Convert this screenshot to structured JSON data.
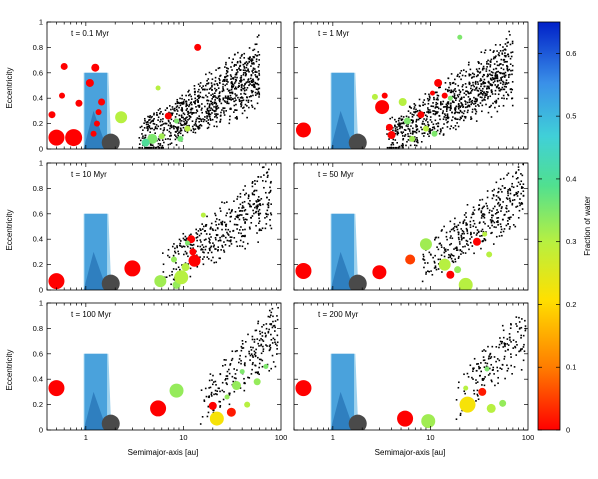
{
  "figure": {
    "xlabel": "Semimajor-axis [au]",
    "ylabel": "Eccentricity",
    "colorbar_label": "Fraction of water"
  },
  "colors": {
    "water_scale": [
      "#ff0000",
      "#ff7a00",
      "#ffe000",
      "#b8f040",
      "#50e090",
      "#40d0d8",
      "#3a90e8",
      "#0020c8"
    ],
    "habitable_zone_outer": "#9fd2ee",
    "habitable_zone_inner": "#4aa2dc",
    "habitable_zone_core": "#2f7fbf",
    "earth_analog": "#4a4a4a",
    "test_particle": "#000000"
  },
  "chart_data": {
    "type": "scatter",
    "x_scale": "log",
    "xlim": [
      0.4,
      100
    ],
    "ylim": [
      0,
      1
    ],
    "x_ticks": [
      1,
      10,
      100
    ],
    "x_tick_labels": [
      "1",
      "10",
      "100"
    ],
    "y_ticks": [
      0,
      0.2,
      0.4,
      0.6,
      0.8,
      1
    ],
    "y_tick_labels": [
      "0",
      "0.2",
      "0.4",
      "0.6",
      "0.8",
      "1"
    ],
    "colorbar": {
      "range": [
        0,
        0.65
      ],
      "ticks": [
        0,
        0.1,
        0.2,
        0.3,
        0.4,
        0.5,
        0.6
      ],
      "tick_labels": [
        "0",
        "0.1",
        "0.2",
        "0.3",
        "0.4",
        "0.5",
        "0.6"
      ]
    },
    "habitable_zone": {
      "outer": {
        "a_min": 0.95,
        "a_max": 1.7,
        "e_max": 0.6
      },
      "inner_peak": {
        "a_min": 0.95,
        "a_max": 1.5,
        "e_peak": 0.3,
        "a_peak": 1.2
      }
    },
    "earth_analog": {
      "a": 1.8,
      "e": 0.05,
      "size": 9
    },
    "panels": [
      {
        "title": "t = 0.1 Myr",
        "embryos": [
          {
            "a": 0.5,
            "e": 0.09,
            "w": 0.0,
            "size": 8
          },
          {
            "a": 0.75,
            "e": 0.09,
            "w": 0.0,
            "size": 8.5
          },
          {
            "a": 0.45,
            "e": 0.27,
            "w": 0.0,
            "size": 3.5
          },
          {
            "a": 0.57,
            "e": 0.42,
            "w": 0.0,
            "size": 3
          },
          {
            "a": 0.85,
            "e": 0.36,
            "w": 0.0,
            "size": 3.5
          },
          {
            "a": 1.1,
            "e": 0.52,
            "w": 0.0,
            "size": 4
          },
          {
            "a": 1.25,
            "e": 0.64,
            "w": 0.0,
            "size": 4
          },
          {
            "a": 1.35,
            "e": 0.29,
            "w": 0.0,
            "size": 3
          },
          {
            "a": 1.45,
            "e": 0.37,
            "w": 0.0,
            "size": 3.5
          },
          {
            "a": 1.3,
            "e": 0.2,
            "w": 0.0,
            "size": 3
          },
          {
            "a": 1.2,
            "e": 0.12,
            "w": 0.0,
            "size": 3
          },
          {
            "a": 0.6,
            "e": 0.65,
            "w": 0.0,
            "size": 3.5
          },
          {
            "a": 2.3,
            "e": 0.25,
            "w": 0.3,
            "size": 6
          },
          {
            "a": 4.8,
            "e": 0.08,
            "w": 0.35,
            "size": 5
          },
          {
            "a": 4.1,
            "e": 0.05,
            "w": 0.4,
            "size": 4
          },
          {
            "a": 6.0,
            "e": 0.1,
            "w": 0.32,
            "size": 3
          },
          {
            "a": 7.0,
            "e": 0.26,
            "w": 0.0,
            "size": 3.5
          },
          {
            "a": 9.3,
            "e": 0.08,
            "w": 0.36,
            "size": 3
          },
          {
            "a": 11.0,
            "e": 0.16,
            "w": 0.3,
            "size": 3
          },
          {
            "a": 5.5,
            "e": 0.48,
            "w": 0.3,
            "size": 2.5
          },
          {
            "a": 14.0,
            "e": 0.8,
            "w": 0.0,
            "size": 3.5
          },
          {
            "a": 8.5,
            "e": 0.22,
            "w": 0.35,
            "size": 2.5
          }
        ],
        "particles": {
          "count": 900,
          "seed": 11,
          "a_min": 3.5,
          "a_max": 60,
          "e_base": 0.05,
          "e_spread": 0.7
        }
      },
      {
        "title": "t = 1 Myr",
        "embryos": [
          {
            "a": 0.5,
            "e": 0.15,
            "w": 0.0,
            "size": 7.5
          },
          {
            "a": 3.2,
            "e": 0.33,
            "w": 0.0,
            "size": 7
          },
          {
            "a": 3.8,
            "e": 0.17,
            "w": 0.0,
            "size": 3.5
          },
          {
            "a": 3.4,
            "e": 0.42,
            "w": 0.0,
            "size": 3
          },
          {
            "a": 4.0,
            "e": 0.11,
            "w": 0.0,
            "size": 4
          },
          {
            "a": 5.2,
            "e": 0.37,
            "w": 0.3,
            "size": 4
          },
          {
            "a": 5.8,
            "e": 0.22,
            "w": 0.35,
            "size": 3.5
          },
          {
            "a": 6.5,
            "e": 0.08,
            "w": 0.32,
            "size": 3
          },
          {
            "a": 8.0,
            "e": 0.27,
            "w": 0.0,
            "size": 3.5
          },
          {
            "a": 9.0,
            "e": 0.16,
            "w": 0.3,
            "size": 3
          },
          {
            "a": 12.0,
            "e": 0.52,
            "w": 0.0,
            "size": 4
          },
          {
            "a": 14.0,
            "e": 0.42,
            "w": 0.0,
            "size": 3
          },
          {
            "a": 11.0,
            "e": 0.12,
            "w": 0.35,
            "size": 3
          },
          {
            "a": 2.7,
            "e": 0.41,
            "w": 0.3,
            "size": 3
          },
          {
            "a": 10.5,
            "e": 0.44,
            "w": 0.0,
            "size": 2.5
          },
          {
            "a": 16.0,
            "e": 0.4,
            "w": 0.35,
            "size": 2.5
          },
          {
            "a": 20.0,
            "e": 0.88,
            "w": 0.35,
            "size": 2.5
          }
        ],
        "particles": {
          "count": 850,
          "seed": 23,
          "a_min": 3.5,
          "a_max": 70,
          "e_base": 0.06,
          "e_spread": 0.75
        }
      },
      {
        "title": "t = 10 Myr",
        "embryos": [
          {
            "a": 0.5,
            "e": 0.07,
            "w": 0.0,
            "size": 8
          },
          {
            "a": 3.0,
            "e": 0.17,
            "w": 0.0,
            "size": 8
          },
          {
            "a": 5.8,
            "e": 0.07,
            "w": 0.32,
            "size": 6
          },
          {
            "a": 8.5,
            "e": 0.04,
            "w": 0.33,
            "size": 4
          },
          {
            "a": 9.5,
            "e": 0.1,
            "w": 0.3,
            "size": 7
          },
          {
            "a": 10.5,
            "e": 0.18,
            "w": 0.3,
            "size": 4
          },
          {
            "a": 12.0,
            "e": 0.4,
            "w": 0.0,
            "size": 4
          },
          {
            "a": 13.0,
            "e": 0.23,
            "w": 0.0,
            "size": 6
          },
          {
            "a": 12.5,
            "e": 0.3,
            "w": 0.0,
            "size": 3.5
          },
          {
            "a": 8.0,
            "e": 0.24,
            "w": 0.33,
            "size": 3
          },
          {
            "a": 11.0,
            "e": 0.37,
            "w": 0.35,
            "size": 2.5
          },
          {
            "a": 16.0,
            "e": 0.59,
            "w": 0.3,
            "size": 2.5
          }
        ],
        "particles": {
          "count": 420,
          "seed": 37,
          "a_min": 6,
          "a_max": 80,
          "e_base": 0.15,
          "e_spread": 0.75
        }
      },
      {
        "title": "t = 50 Myr",
        "embryos": [
          {
            "a": 0.5,
            "e": 0.15,
            "w": 0.0,
            "size": 8
          },
          {
            "a": 3.0,
            "e": 0.14,
            "w": 0.0,
            "size": 7
          },
          {
            "a": 6.2,
            "e": 0.24,
            "w": 0.05,
            "size": 5
          },
          {
            "a": 9.0,
            "e": 0.36,
            "w": 0.32,
            "size": 6
          },
          {
            "a": 14.0,
            "e": 0.2,
            "w": 0.3,
            "size": 6
          },
          {
            "a": 16.0,
            "e": 0.12,
            "w": 0.0,
            "size": 4
          },
          {
            "a": 19.0,
            "e": 0.16,
            "w": 0.33,
            "size": 3.5
          },
          {
            "a": 23.0,
            "e": 0.04,
            "w": 0.3,
            "size": 7
          },
          {
            "a": 30.0,
            "e": 0.38,
            "w": 0.0,
            "size": 4
          },
          {
            "a": 40.0,
            "e": 0.28,
            "w": 0.3,
            "size": 3
          },
          {
            "a": 36.0,
            "e": 0.44,
            "w": 0.3,
            "size": 2.5
          }
        ],
        "particles": {
          "count": 380,
          "seed": 53,
          "a_min": 8,
          "a_max": 90,
          "e_base": 0.2,
          "e_spread": 0.75
        }
      },
      {
        "title": "t = 100 Myr",
        "embryos": [
          {
            "a": 0.5,
            "e": 0.33,
            "w": 0.0,
            "size": 8
          },
          {
            "a": 5.5,
            "e": 0.17,
            "w": 0.0,
            "size": 8
          },
          {
            "a": 8.5,
            "e": 0.31,
            "w": 0.33,
            "size": 7
          },
          {
            "a": 22.0,
            "e": 0.09,
            "w": 0.22,
            "size": 7
          },
          {
            "a": 20.0,
            "e": 0.19,
            "w": 0.0,
            "size": 4
          },
          {
            "a": 31.0,
            "e": 0.14,
            "w": 0.02,
            "size": 4.5
          },
          {
            "a": 35.0,
            "e": 0.35,
            "w": 0.33,
            "size": 4.5
          },
          {
            "a": 45.0,
            "e": 0.2,
            "w": 0.3,
            "size": 3
          },
          {
            "a": 57.0,
            "e": 0.38,
            "w": 0.33,
            "size": 3.5
          },
          {
            "a": 40.0,
            "e": 0.46,
            "w": 0.35,
            "size": 2.5
          },
          {
            "a": 28.0,
            "e": 0.26,
            "w": 0.33,
            "size": 2.5
          },
          {
            "a": 70.0,
            "e": 0.5,
            "w": 0.35,
            "size": 2.5
          }
        ],
        "particles": {
          "count": 230,
          "seed": 71,
          "a_min": 15,
          "a_max": 95,
          "e_base": 0.2,
          "e_spread": 0.75
        }
      },
      {
        "title": "t = 200 Myr",
        "embryos": [
          {
            "a": 0.5,
            "e": 0.33,
            "w": 0.0,
            "size": 8
          },
          {
            "a": 5.5,
            "e": 0.09,
            "w": 0.0,
            "size": 8
          },
          {
            "a": 9.5,
            "e": 0.07,
            "w": 0.32,
            "size": 7
          },
          {
            "a": 24.0,
            "e": 0.2,
            "w": 0.22,
            "size": 8
          },
          {
            "a": 34.0,
            "e": 0.3,
            "w": 0.02,
            "size": 4
          },
          {
            "a": 42.0,
            "e": 0.17,
            "w": 0.3,
            "size": 4.5
          },
          {
            "a": 55.0,
            "e": 0.21,
            "w": 0.33,
            "size": 3.5
          },
          {
            "a": 23.0,
            "e": 0.33,
            "w": 0.3,
            "size": 2.5
          },
          {
            "a": 38.0,
            "e": 0.48,
            "w": 0.35,
            "size": 2.5
          }
        ],
        "particles": {
          "count": 170,
          "seed": 89,
          "a_min": 18,
          "a_max": 95,
          "e_base": 0.22,
          "e_spread": 0.75
        }
      }
    ]
  }
}
